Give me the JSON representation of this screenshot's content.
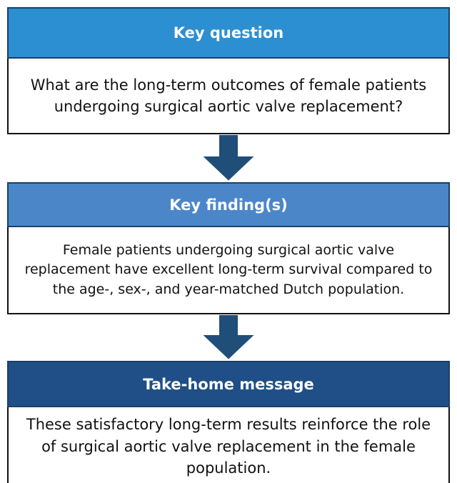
{
  "boxes": [
    {
      "header": "Key question",
      "lines": [
        "What are the long-term outcomes of female patients",
        "undergoing surgical aortic valve replacement?"
      ]
    },
    {
      "header": "Key finding(s)",
      "lines": [
        "Female patients undergoing surgical aortic valve",
        "replacement have excellent long-term survival compared to",
        "the age-, sex-, and year-matched Dutch population."
      ]
    },
    {
      "header": "Take-home message",
      "lines": [
        "These satisfactory long-term results reinforce the role",
        "of surgical aortic valve replacement in the female",
        "population."
      ]
    }
  ]
}
